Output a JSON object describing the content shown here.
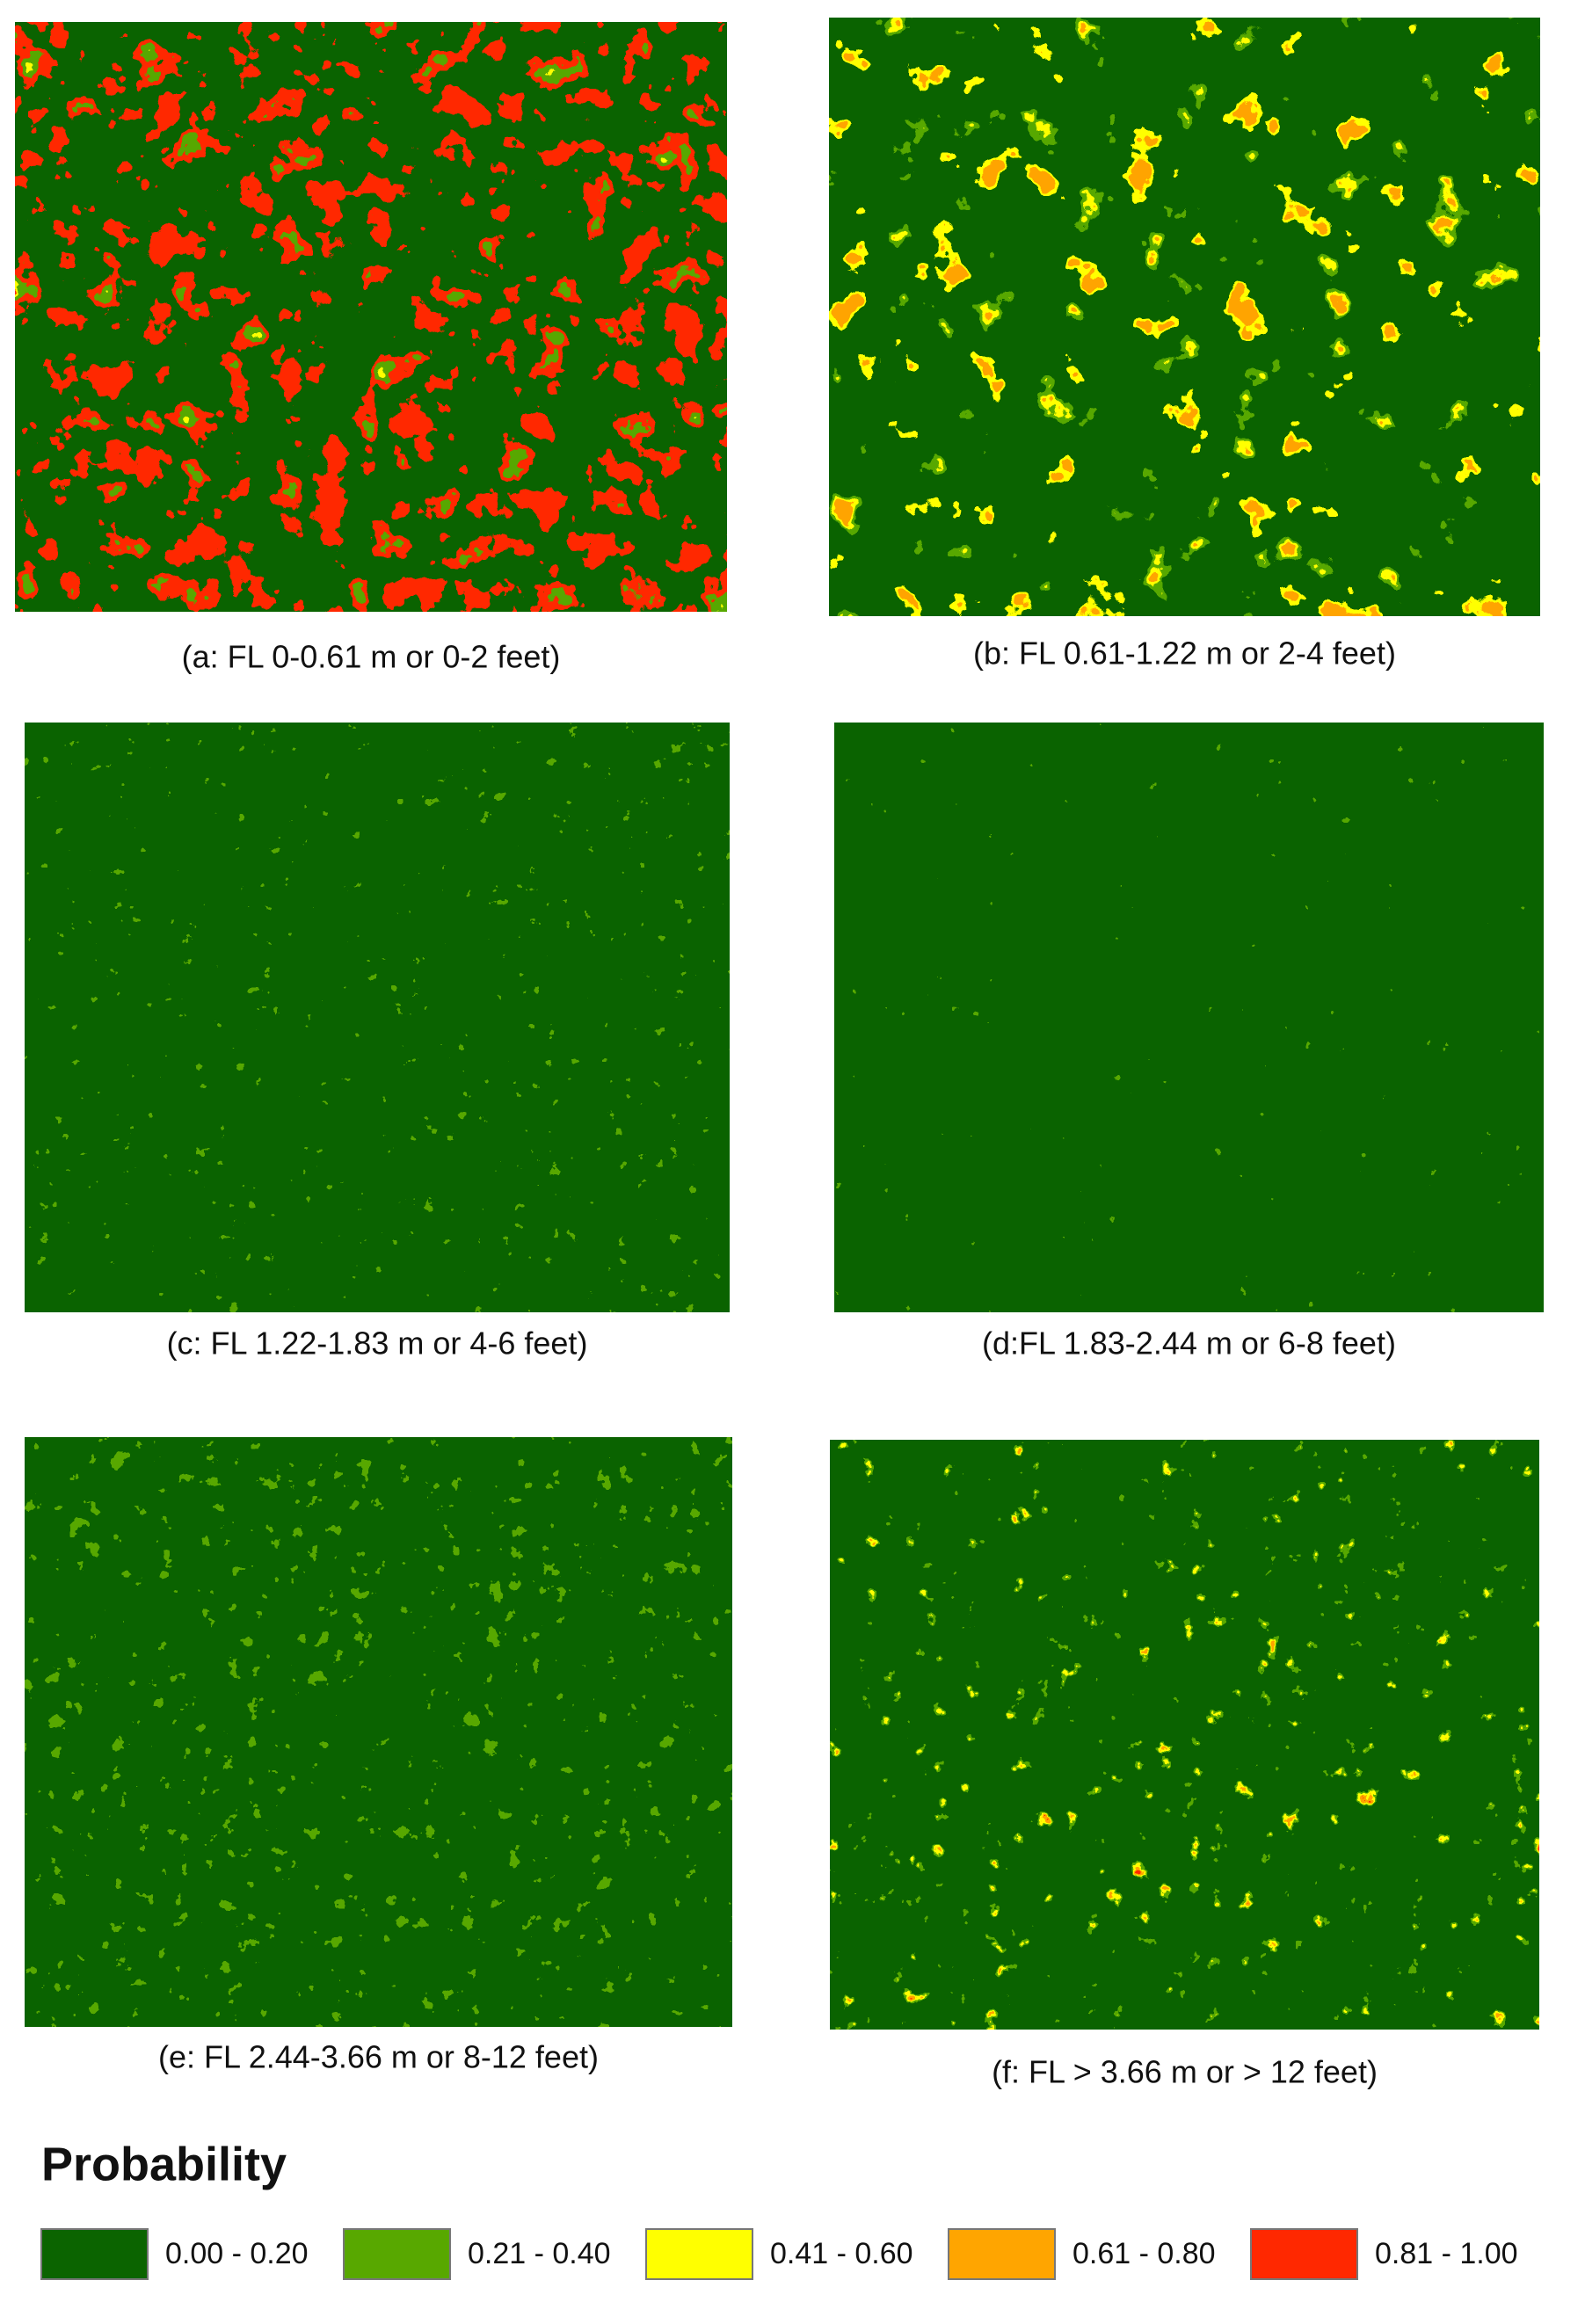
{
  "panels": [
    {
      "caption": "(a: FL 0-0.61 m or 0-2 feet)"
    },
    {
      "caption": "(b: FL 0.61-1.22 m or 2-4 feet)"
    },
    {
      "caption": "(c: FL 1.22-1.83 m or 4-6 feet)"
    },
    {
      "caption": "(d:FL 1.83-2.44 m or 6-8 feet)"
    },
    {
      "caption": "(e: FL 2.44-3.66 m or 8-12 feet)"
    },
    {
      "caption": "(f: FL > 3.66 m or > 12 feet)"
    }
  ],
  "legend": {
    "title": "Probability",
    "items": [
      {
        "label": "0.00 - 0.20",
        "color": "#0b6400"
      },
      {
        "label": "0.21 - 0.40",
        "color": "#58a800"
      },
      {
        "label": "0.41 - 0.60",
        "color": "#ffff00"
      },
      {
        "label": "0.61 - 0.80",
        "color": "#ffa500"
      },
      {
        "label": "0.81 - 1.00",
        "color": "#ff2800"
      }
    ]
  }
}
